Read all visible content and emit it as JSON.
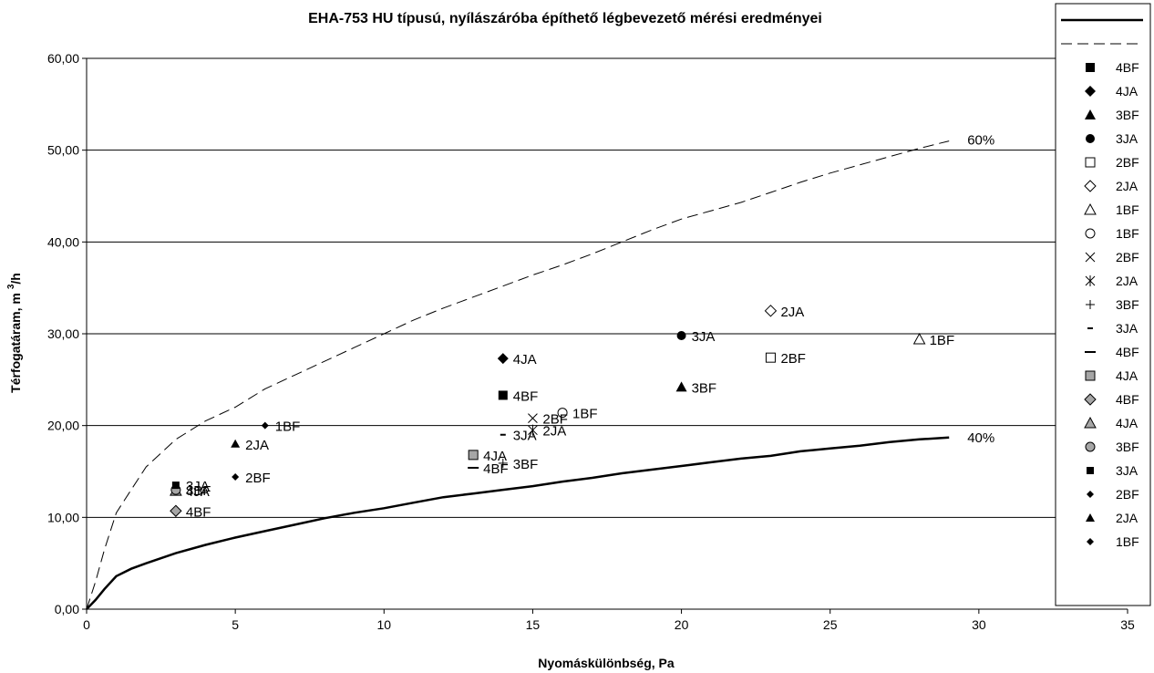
{
  "chart_data": {
    "type": "scatter",
    "title": "EHA-753 HU típusú, nyílászáróba építhető légbevezető mérési eredményei",
    "xlabel": "Nyomáskülönbség, Pa",
    "ylabel": "Térfogatáram, m",
    "ylabel_sup": "3",
    "ylabel_suffix": "/h",
    "xlim": [
      0,
      35
    ],
    "ylim": [
      0,
      60
    ],
    "x_ticks": [
      "0",
      "5",
      "10",
      "15",
      "20",
      "25",
      "30",
      "35"
    ],
    "y_ticks": [
      "0,00",
      "10,00",
      "20,00",
      "30,00",
      "40,00",
      "50,00",
      "60,00"
    ],
    "grid": "horizontal",
    "legend_position": "right",
    "curves": [
      {
        "name": "40%",
        "style": "solid",
        "x": [
          0,
          0.3,
          0.6,
          1.0,
          1.5,
          2.0,
          3.0,
          4.0,
          5.0,
          6.0,
          7.0,
          8.0,
          9.0,
          10.0,
          11.0,
          12.0,
          13.0,
          14.0,
          15.0,
          16.0,
          17.0,
          18.0,
          19.0,
          20.0,
          21.0,
          22.0,
          23.0,
          24.0,
          25.0,
          26.0,
          27.0,
          28.0,
          29.0
        ],
        "y": [
          0,
          1.0,
          2.2,
          3.6,
          4.4,
          5.0,
          6.1,
          7.0,
          7.8,
          8.5,
          9.2,
          9.9,
          10.5,
          11.0,
          11.6,
          12.2,
          12.6,
          13.0,
          13.4,
          13.9,
          14.3,
          14.8,
          15.2,
          15.6,
          16.0,
          16.4,
          16.7,
          17.2,
          17.5,
          17.8,
          18.2,
          18.5,
          18.7
        ]
      },
      {
        "name": "60%",
        "style": "dashed",
        "x": [
          0,
          0.3,
          0.6,
          1.0,
          1.5,
          2.0,
          3.0,
          4.0,
          5.0,
          6.0,
          7.0,
          8.0,
          9.0,
          10.0,
          11.0,
          12.0,
          13.0,
          14.0,
          15.0,
          16.0,
          17.0,
          18.0,
          19.0,
          20.0,
          21.0,
          22.0,
          23.0,
          24.0,
          25.0,
          26.0,
          27.0,
          28.0,
          29.0
        ],
        "y": [
          0,
          3.0,
          6.5,
          10.5,
          13.0,
          15.5,
          18.5,
          20.5,
          22.0,
          24.0,
          25.5,
          27.0,
          28.5,
          30.0,
          31.5,
          32.8,
          34.0,
          35.2,
          36.4,
          37.5,
          38.7,
          40.0,
          41.3,
          42.5,
          43.4,
          44.3,
          45.4,
          46.5,
          47.5,
          48.4,
          49.3,
          50.2,
          51.0
        ]
      }
    ],
    "curve_labels": [
      "60%",
      "40%"
    ],
    "series": [
      {
        "name": "4BF",
        "marker": "square",
        "color": "#000000",
        "x": 14,
        "y": 23.3,
        "label": "4BF"
      },
      {
        "name": "4JA",
        "marker": "diamond",
        "color": "#000000",
        "x": 14,
        "y": 27.3,
        "label": "4JA"
      },
      {
        "name": "3BF",
        "marker": "triangle",
        "color": "#000000",
        "x": 20,
        "y": 24.2,
        "label": "3BF"
      },
      {
        "name": "3JA",
        "marker": "circle",
        "color": "#000000",
        "x": 20,
        "y": 29.8,
        "label": "3JA"
      },
      {
        "name": "2BF",
        "marker": "square-open",
        "color": "#000000",
        "x": 23,
        "y": 27.4,
        "label": "2BF"
      },
      {
        "name": "2JA",
        "marker": "diamond-open",
        "color": "#000000",
        "x": 23,
        "y": 32.5,
        "label": "2JA"
      },
      {
        "name": "1BF",
        "marker": "triangle-open",
        "color": "#000000",
        "x": 28,
        "y": 29.4,
        "label": "1BF"
      },
      {
        "name": "1BF",
        "marker": "circle-open",
        "color": "#000000",
        "x": 16,
        "y": 21.4,
        "label": "1BF"
      },
      {
        "name": "2BF",
        "marker": "x",
        "color": "#000000",
        "x": 15,
        "y": 20.8,
        "label": "2BF"
      },
      {
        "name": "2JA",
        "marker": "star",
        "color": "#000000",
        "x": 15,
        "y": 19.5,
        "label": "2JA"
      },
      {
        "name": "3BF",
        "marker": "plus",
        "color": "#000000",
        "x": 14,
        "y": 15.9,
        "label": "3BF"
      },
      {
        "name": "3JA",
        "marker": "short-dash",
        "color": "#000000",
        "x": 14,
        "y": 19.0,
        "label": "3JA"
      },
      {
        "name": "4BF",
        "marker": "long-dash",
        "color": "#000000",
        "x": 13,
        "y": 15.4,
        "label": "4BF"
      },
      {
        "name": "4JA",
        "marker": "square-gray",
        "color": "#a6a6a6",
        "x": 13,
        "y": 16.8,
        "label": "4JA"
      },
      {
        "name": "4BF",
        "marker": "diamond-gray",
        "color": "#a6a6a6",
        "x": 3,
        "y": 10.7,
        "label": "4BF"
      },
      {
        "name": "4JA",
        "marker": "triangle-gray",
        "color": "#a6a6a6",
        "x": 3,
        "y": 12.9,
        "label": "4JA"
      },
      {
        "name": "3BF",
        "marker": "circle-gray",
        "color": "#a6a6a6",
        "x": 3,
        "y": 13.0,
        "label": "3BF"
      },
      {
        "name": "3JA",
        "marker": "square-small",
        "color": "#000000",
        "x": 3,
        "y": 13.5,
        "label": "3JA"
      },
      {
        "name": "2BF",
        "marker": "diamond-small",
        "color": "#000000",
        "x": 5,
        "y": 14.4,
        "label": "2BF"
      },
      {
        "name": "2JA",
        "marker": "triangle-small",
        "color": "#000000",
        "x": 5,
        "y": 18.0,
        "label": "2JA"
      },
      {
        "name": "1BF",
        "marker": "diamond-small",
        "color": "#000000",
        "x": 6,
        "y": 20.0,
        "label": "1BF"
      }
    ],
    "legend_entries": [
      "",
      "",
      "4BF",
      "4JA",
      "3BF",
      "3JA",
      "2BF",
      "2JA",
      "1BF",
      "1BF",
      "2BF",
      "2JA",
      "3BF",
      "3JA",
      "4BF",
      "4JA",
      "4BF",
      "4JA",
      "3BF",
      "3JA",
      "2BF",
      "2JA",
      "1BF"
    ]
  }
}
